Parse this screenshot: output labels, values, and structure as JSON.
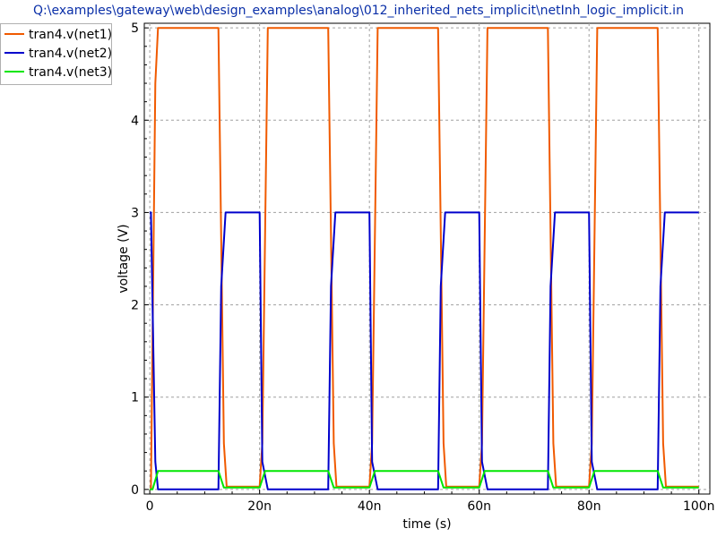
{
  "chart_data": {
    "type": "line",
    "title": "Q:\\examples\\gateway\\web\\design_examples\\analog\\012_inherited_nets_implicit\\netInh_logic_implicit.in",
    "xlabel": "time (s)",
    "ylabel": "voltage (V)",
    "xlim": [
      -1e-09,
      1.02e-07
    ],
    "ylim": [
      -0.05,
      5.05
    ],
    "x_ticks": [
      0,
      2e-08,
      4e-08,
      6e-08,
      8e-08,
      1e-07
    ],
    "x_tick_labels": [
      "0",
      "20n",
      "40n",
      "60n",
      "80n",
      "100n"
    ],
    "y_ticks": [
      0,
      1,
      2,
      3,
      4,
      5
    ],
    "y_tick_labels": [
      "0",
      "1",
      "2",
      "3",
      "4",
      "5"
    ],
    "grid": true,
    "legend_position": "top-left",
    "series": [
      {
        "name": "tran4.v(net1)",
        "color": "#f05a00",
        "x": [
          0,
          2e-10,
          1e-09,
          1.5e-09,
          1.25e-08,
          1.35e-08,
          1.4e-08,
          2e-08,
          2.05e-08,
          2.15e-08,
          3.25e-08,
          3.35e-08,
          3.4e-08,
          4e-08,
          4.05e-08,
          4.15e-08,
          5.25e-08,
          5.35e-08,
          5.4e-08,
          6e-08,
          6.05e-08,
          6.15e-08,
          7.25e-08,
          7.35e-08,
          7.4e-08,
          8e-08,
          8.05e-08,
          8.15e-08,
          9.25e-08,
          9.35e-08,
          9.4e-08,
          1e-07
        ],
        "y": [
          0,
          0,
          4.4,
          5,
          5,
          0.5,
          0.03,
          0.03,
          0.5,
          5,
          5,
          0.5,
          0.03,
          0.03,
          0.5,
          5,
          5,
          0.5,
          0.03,
          0.03,
          0.5,
          5,
          5,
          0.5,
          0.03,
          0.03,
          0.5,
          5,
          5,
          0.5,
          0.03,
          0.03
        ]
      },
      {
        "name": "tran4.v(net2)",
        "color": "#0000cc",
        "x": [
          0,
          2e-10,
          1e-09,
          1.5e-09,
          1.25e-08,
          1.3e-08,
          1.38e-08,
          2e-08,
          2.05e-08,
          2.15e-08,
          3.25e-08,
          3.3e-08,
          3.38e-08,
          4e-08,
          4.05e-08,
          4.15e-08,
          5.25e-08,
          5.3e-08,
          5.38e-08,
          6e-08,
          6.05e-08,
          6.15e-08,
          7.25e-08,
          7.3e-08,
          7.38e-08,
          8e-08,
          8.05e-08,
          8.15e-08,
          9.25e-08,
          9.3e-08,
          9.38e-08,
          1e-07
        ],
        "y": [
          3,
          3,
          0.3,
          0,
          0,
          2.2,
          3,
          3,
          0.3,
          0,
          0,
          2.2,
          3,
          3,
          0.3,
          0,
          0,
          2.2,
          3,
          3,
          0.3,
          0,
          0,
          2.2,
          3,
          3,
          0.3,
          0,
          0,
          2.2,
          3,
          3
        ]
      },
      {
        "name": "tran4.v(net3)",
        "color": "#00e600",
        "x": [
          0,
          5e-10,
          1.5e-09,
          1.25e-08,
          1.35e-08,
          2e-08,
          2.1e-08,
          3.25e-08,
          3.35e-08,
          4e-08,
          4.1e-08,
          5.25e-08,
          5.35e-08,
          6e-08,
          6.1e-08,
          7.25e-08,
          7.35e-08,
          8e-08,
          8.1e-08,
          9.25e-08,
          9.35e-08,
          1e-07
        ],
        "y": [
          0,
          0,
          0.2,
          0.2,
          0.02,
          0.02,
          0.2,
          0.2,
          0.02,
          0.02,
          0.2,
          0.2,
          0.02,
          0.02,
          0.2,
          0.2,
          0.02,
          0.02,
          0.2,
          0.2,
          0.02,
          0.02
        ]
      }
    ]
  }
}
